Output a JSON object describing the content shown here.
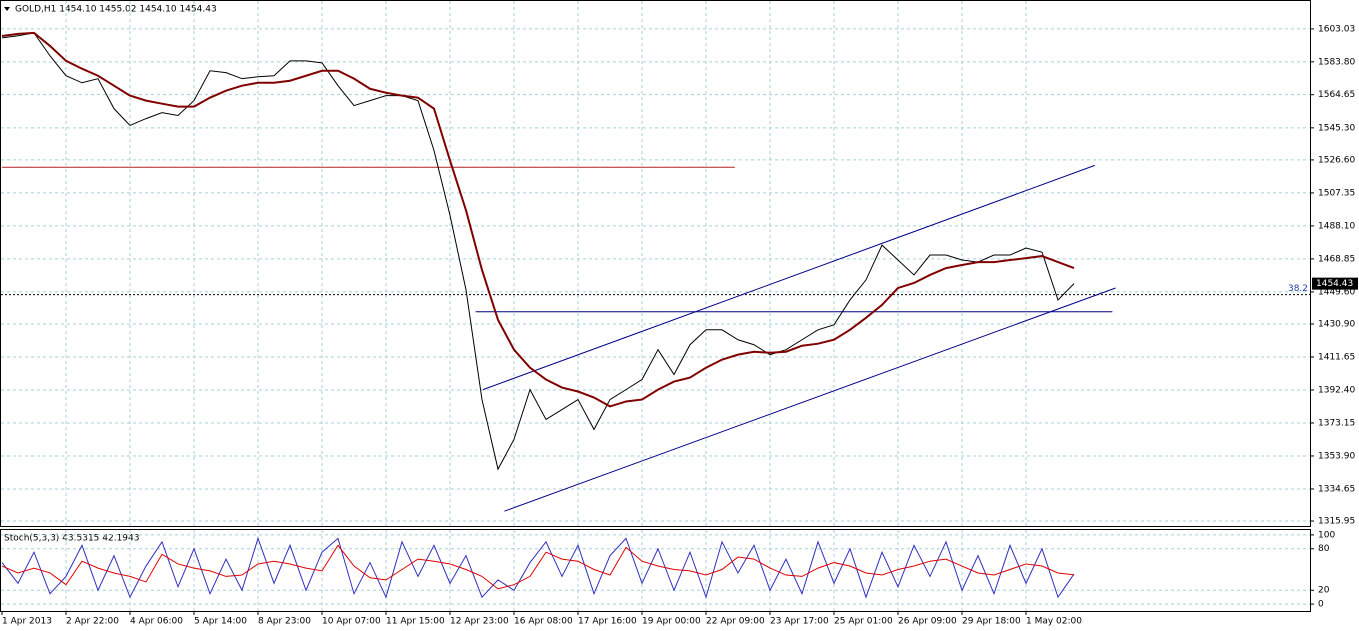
{
  "chart_data": [
    {
      "type": "line",
      "header": "GOLD,H1  1454.10 1455.02 1454.10 1454.43",
      "categories": [
        "1 Apr 2013",
        null,
        null,
        null,
        "2 Apr 22:00",
        null,
        null,
        null,
        "4 Apr 06:00",
        null,
        null,
        null,
        "5 Apr 14:00",
        null,
        null,
        null,
        "8 Apr 23:00",
        null,
        null,
        null,
        "10 Apr 07:00",
        null,
        null,
        null,
        "11 Apr 15:00",
        null,
        null,
        null,
        "12 Apr 23:00",
        null,
        null,
        null,
        "16 Apr 08:00",
        null,
        null,
        null,
        "17 Apr 16:00",
        null,
        null,
        null,
        "19 Apr 00:00",
        null,
        null,
        null,
        "22 Apr 09:00",
        null,
        null,
        null,
        "23 Apr 17:00",
        null,
        null,
        null,
        "25 Apr 01:00",
        null,
        null,
        null,
        "26 Apr 09:00",
        null,
        null,
        null,
        "29 Apr 18:00",
        null,
        null,
        null,
        "1 May 02:00",
        null,
        null,
        null
      ],
      "series": [
        {
          "color": "#000000",
          "values": [
            1597.8,
            1599.0,
            1600.7,
            1587.3,
            1575.7,
            1571.6,
            1574.0,
            1556.5,
            1546.7,
            1550.7,
            1554.2,
            1552.5,
            1561.2,
            1578.6,
            1577.5,
            1574.0,
            1575.1,
            1575.7,
            1584.4,
            1584.4,
            1583.2,
            1569.9,
            1558.3,
            1561.2,
            1564.1,
            1564.1,
            1561.2,
            1532.1,
            1494.3,
            1450.8,
            1386.8,
            1346.2,
            1363.6,
            1392.6,
            1375.2,
            1381.0,
            1386.8,
            1369.4,
            1386.8,
            1392.6,
            1398.5,
            1415.9,
            1401.4,
            1418.8,
            1427.5,
            1427.5,
            1421.7,
            1418.8,
            1413.0,
            1415.9,
            1421.7,
            1427.5,
            1430.4,
            1444.9,
            1456.6,
            1476.9,
            1468.2,
            1459.5,
            1471.1,
            1471.1,
            1468.2,
            1467.0,
            1471.1,
            1471.1,
            1475.2,
            1472.8,
            1444.9,
            1454.43
          ]
        },
        {
          "color": "#800000",
          "values": [
            1598.9,
            1600.1,
            1600.7,
            1593.1,
            1584.4,
            1579.8,
            1575.7,
            1569.9,
            1564.1,
            1561.2,
            1559.4,
            1557.7,
            1557.7,
            1562.9,
            1567.0,
            1569.9,
            1571.6,
            1571.6,
            1572.8,
            1575.7,
            1578.6,
            1578.6,
            1574.0,
            1568.1,
            1565.8,
            1564.1,
            1562.9,
            1556.5,
            1526.3,
            1497.2,
            1462.4,
            1433.3,
            1415.9,
            1405.4,
            1398.5,
            1393.8,
            1391.5,
            1388.0,
            1382.8,
            1385.7,
            1386.8,
            1392.6,
            1397.3,
            1399.6,
            1405.4,
            1410.1,
            1413.0,
            1414.7,
            1414.1,
            1414.7,
            1418.2,
            1419.4,
            1421.7,
            1427.5,
            1434.5,
            1442.0,
            1451.9,
            1454.8,
            1459.5,
            1463.5,
            1465.3,
            1467.0,
            1467.0,
            1468.2,
            1469.3,
            1470.5,
            1467.0,
            1463.5
          ]
        }
      ],
      "ylim": [
        1313.05,
        1619.3
      ],
      "yticks": [
        1603.03,
        {
          "value": 1583.8,
          "label": "1583.80"
        },
        1564.65,
        {
          "value": 1545.3,
          "label": "1545.30"
        },
        {
          "value": 1526.6,
          "label": "1526.60"
        },
        1507.35,
        {
          "value": 1488.1,
          "label": "1488.10"
        },
        1468.85,
        {
          "value": 1449.6,
          "label": "1449.60"
        },
        {
          "value": 1430.9,
          "label": "1430.90"
        },
        1411.65,
        {
          "value": 1392.4,
          "label": "1392.40"
        },
        1373.15,
        {
          "value": 1353.9,
          "label": "1353.90"
        },
        1334.65,
        1315.95
      ],
      "grid": true,
      "trend_lines": [
        {
          "color": "#b22222",
          "x": [
            0,
            45.8
          ],
          "y": [
            1522.3,
            1522.3
          ]
        },
        {
          "color": "#00008b",
          "x": [
            29.6,
            69.4
          ],
          "y": [
            1438.0,
            1438.0
          ]
        },
        {
          "color": "#00008b",
          "x": [
            30.06,
            68.3
          ],
          "y": [
            1392.6,
            1523.4
          ]
        },
        {
          "color": "#00008b",
          "x": [
            31.4,
            69.6
          ],
          "y": [
            1321.7,
            1451.9
          ]
        }
      ],
      "levels": [
        {
          "value": 1448.0,
          "label": "38.2"
        }
      ]
    },
    {
      "type": "line",
      "title": "Stoch(5,3,3) 43.5315 42.1943",
      "series": [
        {
          "color": "#3030c0",
          "values": [
            60,
            30,
            75,
            15,
            40,
            85,
            20,
            70,
            10,
            55,
            90,
            25,
            80,
            15,
            65,
            20,
            95,
            30,
            85,
            20,
            75,
            95,
            15,
            60,
            10,
            90,
            40,
            85,
            30,
            70,
            10,
            35,
            20,
            60,
            90,
            40,
            85,
            15,
            70,
            95,
            30,
            80,
            20,
            75,
            10,
            90,
            45,
            85,
            20,
            65,
            15,
            90,
            30,
            80,
            10,
            75,
            25,
            85,
            40,
            90,
            20,
            70,
            15,
            85,
            30,
            80,
            10,
            43.5315
          ]
        },
        {
          "color": "#e00000",
          "values": [
            55,
            45,
            52,
            45,
            28,
            62,
            52,
            45,
            40,
            32,
            72,
            58,
            52,
            48,
            40,
            42,
            58,
            62,
            58,
            52,
            48,
            85,
            55,
            38,
            35,
            50,
            65,
            62,
            58,
            50,
            40,
            22,
            28,
            40,
            75,
            65,
            62,
            50,
            42,
            82,
            62,
            55,
            50,
            48,
            42,
            50,
            68,
            65,
            52,
            42,
            40,
            52,
            60,
            55,
            45,
            42,
            50,
            55,
            62,
            65,
            55,
            45,
            42,
            50,
            58,
            55,
            45,
            42.1943
          ]
        }
      ],
      "ylim": [
        -10,
        107.1
      ],
      "yticks": [
        0,
        20,
        80,
        100
      ],
      "grid": true
    }
  ]
}
